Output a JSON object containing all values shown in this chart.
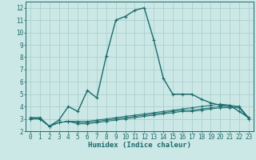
{
  "xlabel": "Humidex (Indice chaleur)",
  "bg_color": "#cce8e6",
  "line_color": "#1a6b6b",
  "grid_color": "#aacfcc",
  "x_values": [
    0,
    1,
    2,
    3,
    4,
    5,
    6,
    7,
    8,
    9,
    10,
    11,
    12,
    13,
    14,
    15,
    16,
    17,
    18,
    19,
    20,
    21,
    22,
    23
  ],
  "series": [
    [
      3.1,
      3.1,
      2.4,
      2.9,
      4.0,
      3.6,
      5.3,
      4.7,
      8.1,
      11.0,
      11.3,
      11.8,
      12.0,
      9.4,
      6.3,
      5.0,
      5.0,
      5.0,
      4.6,
      4.3,
      4.1,
      4.1,
      3.6,
      3.1
    ],
    [
      3.0,
      3.0,
      2.4,
      2.7,
      2.8,
      2.6,
      2.6,
      2.7,
      2.8,
      2.9,
      3.0,
      3.1,
      3.2,
      3.3,
      3.4,
      3.5,
      3.6,
      3.6,
      3.7,
      3.8,
      3.9,
      3.9,
      3.9,
      3.0
    ],
    [
      3.0,
      3.0,
      2.4,
      2.7,
      2.8,
      2.7,
      2.7,
      2.8,
      2.9,
      3.0,
      3.1,
      3.2,
      3.3,
      3.4,
      3.5,
      3.6,
      3.7,
      3.7,
      3.8,
      3.9,
      4.0,
      4.0,
      4.0,
      3.0
    ],
    [
      3.0,
      3.0,
      2.4,
      2.7,
      2.8,
      2.8,
      2.8,
      2.9,
      3.0,
      3.1,
      3.2,
      3.3,
      3.4,
      3.5,
      3.6,
      3.7,
      3.8,
      3.9,
      4.0,
      4.1,
      4.2,
      4.1,
      4.0,
      3.1
    ]
  ],
  "ylim": [
    2,
    12.5
  ],
  "xlim": [
    -0.5,
    23.5
  ],
  "yticks": [
    2,
    3,
    4,
    5,
    6,
    7,
    8,
    9,
    10,
    11,
    12
  ],
  "xticks": [
    0,
    1,
    2,
    3,
    4,
    5,
    6,
    7,
    8,
    9,
    10,
    11,
    12,
    13,
    14,
    15,
    16,
    17,
    18,
    19,
    20,
    21,
    22,
    23
  ],
  "tick_fontsize": 5.5,
  "xlabel_fontsize": 6.5,
  "marker_main": "+",
  "marker_sub": "+",
  "lw_main": 1.0,
  "lw_sub": 0.7
}
